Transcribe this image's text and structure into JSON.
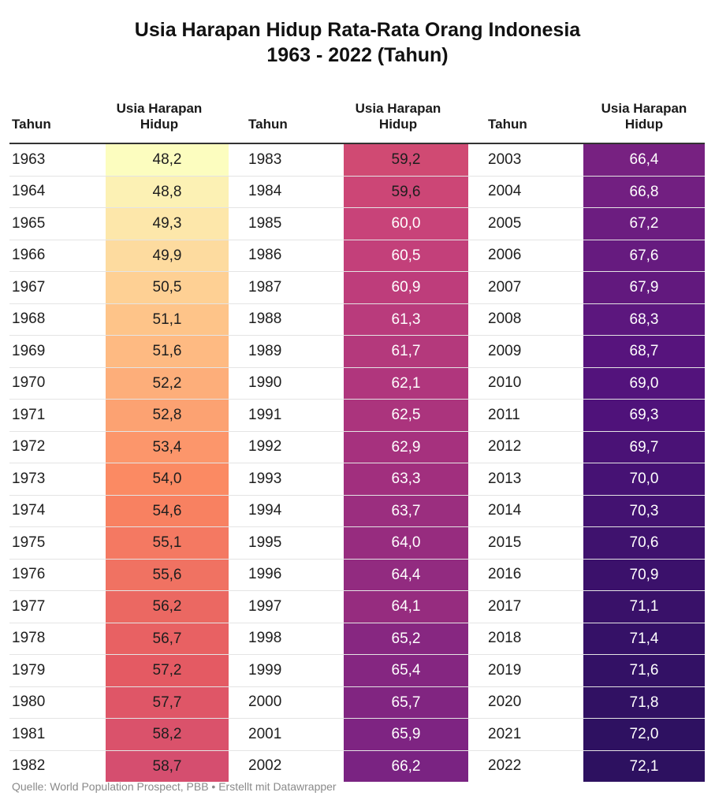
{
  "title_line1": "Usia Harapan Hidup Rata-Rata Orang Indonesia",
  "title_line2": "1963 - 2022 (Tahun)",
  "source": "Quelle: World Population Prospect, PBB • Erstellt mit Datawrapper",
  "chart_data": {
    "type": "table",
    "columns": [
      {
        "header_year": "Tahun",
        "header_value_line1": "Usia Harapan",
        "header_value_line2": "Hidup",
        "years": [
          "1963",
          "1964",
          "1965",
          "1966",
          "1967",
          "1968",
          "1969",
          "1970",
          "1971",
          "1972",
          "1973",
          "1974",
          "1975",
          "1976",
          "1977",
          "1978",
          "1979",
          "1980",
          "1981",
          "1982"
        ],
        "values": [
          "48,2",
          "48,8",
          "49,3",
          "49,9",
          "50,5",
          "51,1",
          "51,6",
          "52,2",
          "52,8",
          "53,4",
          "54,0",
          "54,6",
          "55,1",
          "55,6",
          "56,2",
          "56,7",
          "57,2",
          "57,7",
          "58,2",
          "58,7"
        ]
      },
      {
        "header_year": "Tahun",
        "header_value_line1": "Usia Harapan",
        "header_value_line2": "Hidup",
        "years": [
          "1983",
          "1984",
          "1985",
          "1986",
          "1987",
          "1988",
          "1989",
          "1990",
          "1991",
          "1992",
          "1993",
          "1994",
          "1995",
          "1996",
          "1997",
          "1998",
          "1999",
          "2000",
          "2001",
          "2002"
        ],
        "values": [
          "59,2",
          "59,6",
          "60,0",
          "60,5",
          "60,9",
          "61,3",
          "61,7",
          "62,1",
          "62,5",
          "62,9",
          "63,3",
          "63,7",
          "64,0",
          "64,4",
          "64,1",
          "65,2",
          "65,4",
          "65,7",
          "65,9",
          "66,2"
        ]
      },
      {
        "header_year": "Tahun",
        "header_value_line1": "Usia Harapan",
        "header_value_line2": "Hidup",
        "years": [
          "2003",
          "2004",
          "2005",
          "2006",
          "2007",
          "2008",
          "2009",
          "2010",
          "2011",
          "2012",
          "2013",
          "2014",
          "2015",
          "2016",
          "2017",
          "2018",
          "2019",
          "2020",
          "2021",
          "2022"
        ],
        "values": [
          "66,4",
          "66,8",
          "67,2",
          "67,6",
          "67,9",
          "68,3",
          "68,7",
          "69,0",
          "69,3",
          "69,7",
          "70,0",
          "70,3",
          "70,6",
          "70,9",
          "71,1",
          "71,4",
          "71,6",
          "71,8",
          "72,0",
          "72,1"
        ]
      }
    ],
    "color_scale": {
      "min": 48.2,
      "max": 72.1,
      "stops": [
        "#fcfdbf",
        "#fec287",
        "#fb8761",
        "#e45a63",
        "#c7427a",
        "#a3307e",
        "#7b2382",
        "#51127c",
        "#2d1160"
      ]
    }
  }
}
